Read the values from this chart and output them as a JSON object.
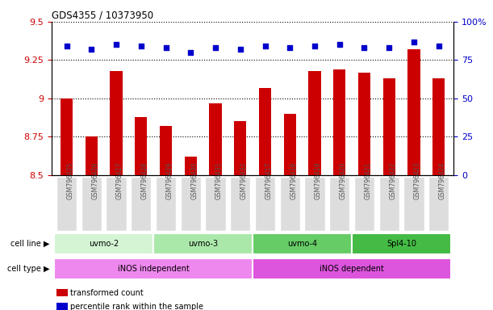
{
  "title": "GDS4355 / 10373950",
  "samples": [
    "GSM796425",
    "GSM796426",
    "GSM796427",
    "GSM796428",
    "GSM796429",
    "GSM796430",
    "GSM796431",
    "GSM796432",
    "GSM796417",
    "GSM796418",
    "GSM796419",
    "GSM796420",
    "GSM796421",
    "GSM796422",
    "GSM796423",
    "GSM796424"
  ],
  "transformed_count": [
    9.0,
    8.75,
    9.18,
    8.88,
    8.82,
    8.62,
    8.97,
    8.85,
    9.07,
    8.9,
    9.18,
    9.19,
    9.17,
    9.13,
    9.32,
    9.13
  ],
  "percentile_rank": [
    84,
    82,
    85,
    84,
    83,
    80,
    83,
    82,
    84,
    83,
    84,
    85,
    83,
    83,
    87,
    84
  ],
  "ylim_left": [
    8.5,
    9.5
  ],
  "ylim_right": [
    0,
    100
  ],
  "yticks_left": [
    8.5,
    8.75,
    9.0,
    9.25,
    9.5
  ],
  "yticks_left_labels": [
    "8.5",
    "8.75",
    "9",
    "9.25",
    "9.5"
  ],
  "yticks_right": [
    0,
    25,
    50,
    75,
    100
  ],
  "yticks_right_labels": [
    "0",
    "25",
    "50",
    "75",
    "100%"
  ],
  "cell_line_groups": [
    {
      "label": "uvmo-2",
      "start": 0,
      "end": 3,
      "color": "#d4f5d4"
    },
    {
      "label": "uvmo-3",
      "start": 4,
      "end": 7,
      "color": "#aae8aa"
    },
    {
      "label": "uvmo-4",
      "start": 8,
      "end": 11,
      "color": "#66cc66"
    },
    {
      "label": "Spl4-10",
      "start": 12,
      "end": 15,
      "color": "#44bb44"
    }
  ],
  "cell_type_groups": [
    {
      "label": "iNOS independent",
      "start": 0,
      "end": 7,
      "color": "#ee88ee"
    },
    {
      "label": "iNOS dependent",
      "start": 8,
      "end": 15,
      "color": "#dd55dd"
    }
  ],
  "bar_color": "#cc0000",
  "dot_color": "#0000cc",
  "bar_width": 0.5,
  "grid_color": "#000000",
  "background_color": "#ffffff",
  "tick_label_color_left": "#cc0000",
  "tick_label_color_right": "#0000cc",
  "legend_items": [
    {
      "color": "#cc0000",
      "label": "transformed count"
    },
    {
      "color": "#0000cc",
      "label": "percentile rank within the sample"
    }
  ],
  "row_label_cell_line": "cell line",
  "row_label_cell_type": "cell type",
  "xticklabel_color": "#555555",
  "xtick_bg_color": "#dddddd"
}
